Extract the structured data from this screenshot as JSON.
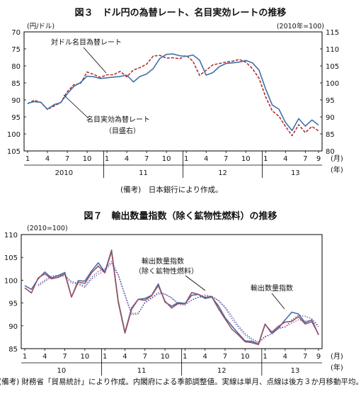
{
  "chart_data": [
    {
      "type": "line",
      "title": "図３　ドル円の為替レート、名目実効レートの推移",
      "left_unit": "(円/ドル)",
      "right_unit": "(2010年=100)",
      "left_axis": {
        "ylim": [
          105,
          70
        ],
        "ticks": [
          "70",
          "75",
          "80",
          "85",
          "90",
          "95",
          "100",
          "105"
        ],
        "inverted": true
      },
      "right_axis": {
        "ylim": [
          80,
          115
        ],
        "ticks": [
          "115",
          "110",
          "105",
          "100",
          "95",
          "90",
          "85",
          "80"
        ]
      },
      "x": {
        "month_ticks": [
          "1",
          "4",
          "7",
          "10",
          "1",
          "4",
          "7",
          "10",
          "1",
          "4",
          "7",
          "10",
          "1",
          "4",
          "7",
          "9"
        ],
        "years": [
          "2010",
          "11",
          "12",
          "13"
        ],
        "month_unit": "(月)",
        "year_unit": "(年)"
      },
      "annotations": [
        "対ドル名目為替レート",
        "名目実効為替レート",
        "（目盛右）"
      ],
      "series": [
        {
          "name": "対ドル名目為替レート",
          "axis": "left",
          "style": "dashed",
          "color": "#b03030",
          "values": [
            91.1,
            90.1,
            90.7,
            92.8,
            91.8,
            90.8,
            87.6,
            85.5,
            85.2,
            81.8,
            82.5,
            83.4,
            82.6,
            82.6,
            81.6,
            83.2,
            81.2,
            80.5,
            79.5,
            77.1,
            76.9,
            77.7,
            77.6,
            77.9,
            76.9,
            78.6,
            82.8,
            81.3,
            79.7,
            79.3,
            78.9,
            78.6,
            78.1,
            78.9,
            80.8,
            83.6,
            89.1,
            93.2,
            94.8,
            97.8,
            100.5,
            97.3,
            99.6,
            97.8,
            99.1
          ]
        },
        {
          "name": "名目実効為替レート",
          "axis": "right",
          "style": "solid",
          "color": "#4070a8",
          "values": [
            94.0,
            94.5,
            94.3,
            92.3,
            93.6,
            94.2,
            96.8,
            99.0,
            100.1,
            102.0,
            101.8,
            101.3,
            101.5,
            101.7,
            101.9,
            102.3,
            100.3,
            101.9,
            102.6,
            104.2,
            107.2,
            108.4,
            108.5,
            108.0,
            107.8,
            108.2,
            106.7,
            102.3,
            103.0,
            104.8,
            105.7,
            105.9,
            106.1,
            106.6,
            105.9,
            103.8,
            98.2,
            93.5,
            92.3,
            88.4,
            86.0,
            89.5,
            87.3,
            89.1,
            87.6
          ]
        }
      ]
    },
    {
      "type": "line",
      "title": "図７　輸出数量指数（除く鉱物性燃料）の推移",
      "y_unit": "(2010=100)",
      "ylim": [
        85,
        110
      ],
      "yticks": [
        "110",
        "105",
        "100",
        "95",
        "90",
        "85"
      ],
      "x": {
        "month_ticks": [
          "1",
          "4",
          "7",
          "10",
          "1",
          "4",
          "7",
          "10",
          "1",
          "4",
          "7",
          "10",
          "1",
          "4",
          "7",
          "9"
        ],
        "years": [
          "10",
          "11",
          "12",
          "13"
        ],
        "month_unit": "(月)",
        "year_unit": "(年)"
      },
      "annotations": [
        "輸出数量指数",
        "（除く鉱物性燃料）",
        "輸出数量指数"
      ],
      "series": [
        {
          "name": "輸出数量指数",
          "style": "solid",
          "color": "#4070a8",
          "values": [
            98.8,
            98.0,
            100.3,
            101.8,
            100.5,
            101.0,
            101.7,
            96.3,
            99.9,
            99.8,
            102.0,
            103.8,
            101.8,
            106.6,
            95.5,
            88.6,
            93.9,
            95.8,
            96.0,
            96.7,
            99.2,
            95.2,
            94.3,
            95.1,
            94.9,
            96.7,
            96.9,
            96.0,
            96.3,
            94.4,
            91.8,
            90.0,
            88.3,
            86.7,
            86.6,
            86.0,
            90.4,
            88.3,
            89.5,
            91.3,
            93.0,
            92.6,
            90.7,
            91.3,
            88.0
          ]
        },
        {
          "name": "輸出数量指数（除く鉱物性燃料）",
          "style": "solid",
          "color": "#a05060",
          "values": [
            98.3,
            97.2,
            100.5,
            101.4,
            100.3,
            100.6,
            101.4,
            96.3,
            99.6,
            99.3,
            101.6,
            103.1,
            101.6,
            106.3,
            95.2,
            88.4,
            93.6,
            95.8,
            95.6,
            96.6,
            98.8,
            95.4,
            93.9,
            94.9,
            94.8,
            97.3,
            96.9,
            96.2,
            96.4,
            93.8,
            91.5,
            89.3,
            88.0,
            86.5,
            86.3,
            85.9,
            90.3,
            88.6,
            89.9,
            90.8,
            91.0,
            92.0,
            90.4,
            90.9,
            88.1
          ]
        },
        {
          "name": "3ヶ月移動平均（輸出数量指数）",
          "style": "dotted",
          "color": "#3050a0",
          "values": [
            null,
            null,
            99.0,
            100.0,
            100.9,
            101.1,
            101.1,
            99.7,
            99.3,
            98.7,
            100.6,
            101.9,
            102.5,
            104.1,
            101.3,
            96.9,
            92.7,
            92.8,
            95.2,
            96.2,
            97.3,
            97.0,
            96.2,
            94.9,
            94.8,
            95.6,
            96.2,
            96.5,
            96.4,
            95.6,
            94.2,
            92.1,
            90.0,
            88.3,
            87.2,
            86.4,
            87.7,
            88.2,
            89.4,
            89.7,
            91.3,
            92.3,
            92.1,
            91.5,
            90.0
          ]
        },
        {
          "name": "3ヶ月移動平均（除く鉱物性燃料）",
          "style": "dotted",
          "color": "#8a5a9a",
          "values": [
            null,
            null,
            98.7,
            99.7,
            100.7,
            100.8,
            100.8,
            99.4,
            99.1,
            98.4,
            100.2,
            101.3,
            102.1,
            103.7,
            101.0,
            96.6,
            92.4,
            92.6,
            95.0,
            96.0,
            97.0,
            96.9,
            96.0,
            94.7,
            94.5,
            95.7,
            96.3,
            96.8,
            96.5,
            95.5,
            93.9,
            91.5,
            89.6,
            87.9,
            86.9,
            86.2,
            87.5,
            88.3,
            89.6,
            89.8,
            90.6,
            91.3,
            91.1,
            91.1,
            89.8
          ]
        }
      ]
    }
  ],
  "notes": {
    "source1": "(備考)　日本銀行により作成。",
    "source2": "(備考) 財務省「貿易統計」により作成。内閣府による季節調整値。実線は単月、点線は後方３か月移動平均。"
  }
}
